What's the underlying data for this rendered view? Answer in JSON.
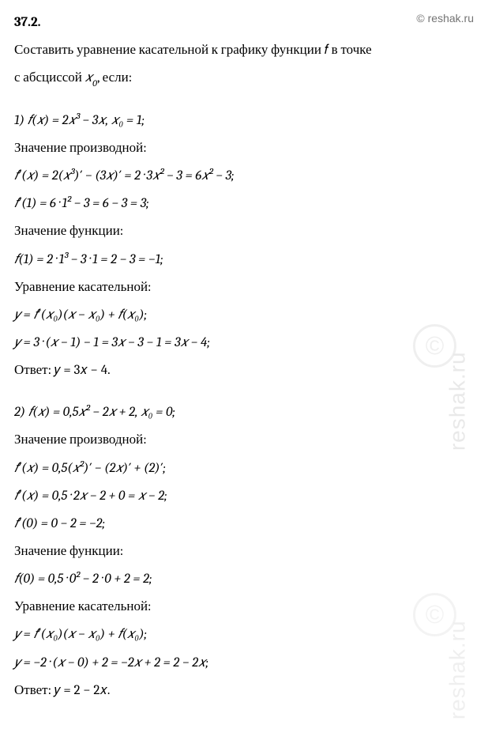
{
  "header": {
    "problem_number": "37.2.",
    "site_link": "reshak.ru",
    "copyright": "©"
  },
  "intro": {
    "line1": "Составить уравнение касательной к графику функции 𝑓 в точке",
    "line2_prefix": "с абсциссой ",
    "line2_var": "𝑥",
    "line2_sub": "0",
    "line2_suffix": ", если:"
  },
  "part1": {
    "given": "1) 𝑓(𝑥) = 2𝑥³ − 3𝑥,   𝑥₀ = 1;",
    "deriv_label": "Значение производной:",
    "deriv1": "𝑓′(𝑥) = 2(𝑥³)′ − (3𝑥)′ = 2 · 3𝑥² − 3 = 6𝑥² − 3;",
    "deriv2": "𝑓′(1) = 6 · 1² − 3 = 6 − 3 = 3;",
    "func_label": "Значение функции:",
    "func1": "𝑓(1) = 2 · 1³ − 3 · 1 = 2 − 3 = −1;",
    "tangent_label": "Уравнение касательной:",
    "tangent1": "𝑦 = 𝑓′(𝑥₀)(𝑥 − 𝑥₀) + 𝑓(𝑥₀);",
    "tangent2": "𝑦 = 3 · (𝑥 − 1) − 1 = 3𝑥 − 3 − 1 = 3𝑥 − 4;",
    "answer": "Ответ:  𝑦 = 3𝑥 − 4."
  },
  "part2": {
    "given": "2) 𝑓(𝑥) = 0,5𝑥² − 2𝑥 + 2,   𝑥₀ = 0;",
    "deriv_label": "Значение производной:",
    "deriv1": "𝑓′(𝑥) = 0,5(𝑥²)′ − (2𝑥)′ + (2)′;",
    "deriv2": "𝑓′(𝑥) = 0,5 · 2𝑥 − 2 + 0 = 𝑥 − 2;",
    "deriv3": "𝑓′(0) = 0 − 2 = −2;",
    "func_label": "Значение функции:",
    "func1": "𝑓(0) = 0,5 · 0² − 2 · 0 + 2 = 2;",
    "tangent_label": "Уравнение касательной:",
    "tangent1": "𝑦 = 𝑓′(𝑥₀)(𝑥 − 𝑥₀) + 𝑓(𝑥₀);",
    "tangent2": "𝑦 = −2 · (𝑥 − 0) + 2 = −2𝑥 + 2 = 2 − 2𝑥;",
    "answer": "Ответ:  𝑦 = 2 − 2𝑥."
  },
  "watermark": {
    "text": "reshak.ru",
    "symbol": "©"
  },
  "styles": {
    "text_color": "#000000",
    "link_color": "#737373",
    "background": "#ffffff",
    "font_size_body": 17,
    "font_size_link": 14
  }
}
